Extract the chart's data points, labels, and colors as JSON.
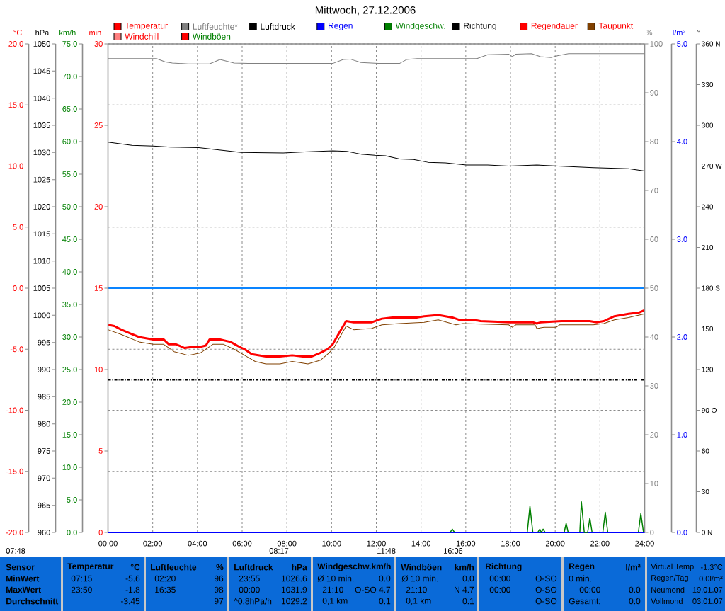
{
  "chart_data": [
    {
      "type": "line",
      "title": "Mittwoch, 27.12.2006",
      "ylabel": "°C",
      "y2label": "hPa",
      "y3label": "km/h",
      "xlim": [
        0,
        24
      ],
      "xticks": [
        {
          "value": 0,
          "label": "00:00"
        },
        {
          "value": 2,
          "label": "02:00"
        },
        {
          "value": 4,
          "label": "04:00"
        },
        {
          "value": 6,
          "label": "06:00"
        },
        {
          "value": 8,
          "label": "08:00"
        },
        {
          "value": 10,
          "label": "10:00"
        },
        {
          "value": 12,
          "label": "12:00"
        },
        {
          "value": 14,
          "label": "14:00"
        },
        {
          "value": 16,
          "label": "16:00"
        },
        {
          "value": 18,
          "label": "18:00"
        },
        {
          "value": 20,
          "label": "20:00"
        },
        {
          "value": 22,
          "label": "22:00"
        },
        {
          "value": 24,
          "label": "24:00"
        }
      ],
      "ylim": [
        -20,
        20
      ],
      "yticks": [
        {
          "value": -20,
          "label": "-20.0"
        },
        {
          "value": -15,
          "label": "-15.0"
        },
        {
          "value": -10,
          "label": "-10.0"
        },
        {
          "value": -5,
          "label": "-5.0"
        },
        {
          "value": 0,
          "label": "0.0"
        },
        {
          "value": 5,
          "label": "5.0"
        },
        {
          "value": 10,
          "label": "10.0"
        },
        {
          "value": 15,
          "label": "15.0"
        },
        {
          "value": 20,
          "label": "20.0"
        }
      ],
      "y2lim": [
        960,
        1050
      ],
      "y2ticks": [
        960,
        965,
        970,
        975,
        980,
        985,
        990,
        995,
        1000,
        1005,
        1010,
        1015,
        1020,
        1025,
        1030,
        1035,
        1040,
        1045,
        1050
      ],
      "y3lim": [
        0,
        75
      ],
      "y3ticks": [
        {
          "value": 0,
          "label": "0.0"
        },
        {
          "value": 5,
          "label": "5.0"
        },
        {
          "value": 10,
          "label": "10.0"
        },
        {
          "value": 15,
          "label": "15.0"
        },
        {
          "value": 20,
          "label": "20.0"
        },
        {
          "value": 25,
          "label": "25.0"
        },
        {
          "value": 30,
          "label": "30.0"
        },
        {
          "value": 35,
          "label": "35.0"
        },
        {
          "value": 40,
          "label": "40.0"
        },
        {
          "value": 45,
          "label": "45.0"
        },
        {
          "value": 50,
          "label": "50.0"
        },
        {
          "value": 55,
          "label": "55.0"
        },
        {
          "value": 60,
          "label": "60.0"
        },
        {
          "value": 65,
          "label": "65.0"
        },
        {
          "value": 70,
          "label": "70.0"
        },
        {
          "value": 75,
          "label": "75.0"
        }
      ],
      "grid": true,
      "legend": "top",
      "series": [
        {
          "name": "Temperatur",
          "color": "#ff0000",
          "x": [
            0,
            0.28,
            0.6,
            0.99,
            1.39,
            2.02,
            2.49,
            2.72,
            3.04,
            3.43,
            3.83,
            4.14,
            4.38,
            4.54,
            5.01,
            5.48,
            5.87,
            6.11,
            6.43,
            7.06,
            7.69,
            8.24,
            8.71,
            9.1,
            9.5,
            9.81,
            10.05,
            10.36,
            10.65,
            10.99,
            11.78,
            12.25,
            12.72,
            13.83,
            14.14,
            14.77,
            15.4,
            15.72,
            16.35,
            16.66,
            18.0,
            19.02,
            19.18,
            19.34,
            20.28,
            20.6,
            21.54,
            21.86,
            22.17,
            22.65,
            23.28,
            23.75,
            24
          ],
          "values": [
            -3.0,
            -3.1,
            -3.4,
            -3.7,
            -4.0,
            -4.2,
            -4.2,
            -4.6,
            -4.6,
            -4.9,
            -4.8,
            -4.8,
            -4.7,
            -4.2,
            -4.2,
            -4.4,
            -4.8,
            -5.0,
            -5.4,
            -5.6,
            -5.6,
            -5.5,
            -5.6,
            -5.6,
            -5.3,
            -5.0,
            -4.6,
            -3.6,
            -2.7,
            -2.8,
            -2.8,
            -2.5,
            -2.4,
            -2.4,
            -2.3,
            -2.2,
            -2.4,
            -2.6,
            -2.6,
            -2.7,
            -2.8,
            -2.8,
            -2.9,
            -2.8,
            -2.7,
            -2.7,
            -2.7,
            -2.8,
            -2.7,
            -2.3,
            -2.1,
            -2.0,
            -1.8
          ]
        },
        {
          "name": "Luftdruck",
          "color": "#000000",
          "axis": "y2",
          "x": [
            0,
            1.07,
            2.02,
            2.8,
            4.06,
            4.69,
            5.95,
            7.84,
            8.79,
            10.05,
            10.68,
            11.31,
            11.94,
            12.41,
            13.04,
            13.67,
            14.3,
            15.09,
            16.03,
            16.98,
            17.92,
            19.18,
            20.13,
            21.7,
            23.28,
            24
          ],
          "values": [
            1031.9,
            1031.3,
            1031.2,
            1031.0,
            1030.9,
            1030.6,
            1030.0,
            1029.9,
            1030.1,
            1030.3,
            1030.2,
            1029.7,
            1029.5,
            1029.4,
            1028.8,
            1028.7,
            1028.2,
            1028.1,
            1027.7,
            1027.7,
            1027.5,
            1027.7,
            1027.5,
            1027.2,
            1027.0,
            1026.6
          ]
        },
        {
          "name": "Windgeschw.",
          "color": "#008000",
          "axis": "y3",
          "x": [
            15.3,
            15.4,
            15.5,
            15.55,
            18.75,
            18.87,
            19.0,
            19.1,
            19.22,
            19.31,
            19.38,
            19.46,
            19.55,
            19.6,
            20.4,
            20.49,
            20.58,
            20.65,
            21.1,
            21.17,
            21.3,
            21.45,
            21.55,
            21.65,
            21.7,
            22.13,
            22.24,
            22.35,
            22.4,
            23.72,
            23.83,
            23.95
          ],
          "values": [
            0,
            0.5,
            0,
            null,
            0,
            4.0,
            0,
            null,
            0,
            0.5,
            0,
            0.5,
            0,
            null,
            0,
            1.4,
            0,
            null,
            0,
            4.7,
            0,
            0,
            2.2,
            0,
            null,
            0,
            3.1,
            0,
            null,
            0,
            2.9,
            0
          ]
        },
        {
          "name": "Taupunkt",
          "color": "#804000",
          "x": [
            0,
            0.6,
            1.39,
            2.02,
            2.49,
            2.96,
            3.59,
            4.14,
            4.69,
            5.17,
            5.64,
            6.11,
            6.58,
            7.06,
            7.69,
            8.24,
            8.94,
            9.5,
            9.89,
            10.13,
            10.65,
            10.99,
            11.78,
            12.25,
            13.04,
            14.14,
            14.77,
            15.56,
            15.87,
            17.92,
            18.08,
            18.24,
            19.1,
            19.18,
            19.5,
            20.05,
            20.2,
            21.7,
            22.17,
            22.65,
            23.28,
            24
          ],
          "values": [
            -3.4,
            -3.8,
            -4.4,
            -4.6,
            -4.6,
            -5.2,
            -5.5,
            -5.3,
            -4.6,
            -4.6,
            -5.0,
            -5.5,
            -6.0,
            -6.2,
            -6.2,
            -6.0,
            -6.2,
            -5.9,
            -5.3,
            -4.8,
            -3.1,
            -3.4,
            -3.3,
            -3.0,
            -2.9,
            -2.8,
            -2.6,
            -3.0,
            -2.9,
            -3.0,
            -3.2,
            -3.0,
            -3.0,
            -3.3,
            -3.2,
            -3.2,
            -3.0,
            -3.0,
            -2.9,
            -2.6,
            -2.4,
            -2.1
          ]
        },
        {
          "name": "Windchill",
          "color": "#ff8080"
        },
        {
          "name": "Windböen",
          "color": "#ff0000",
          "axis": "y3"
        }
      ],
      "ref_lines": [
        {
          "axis": "y",
          "value": 0,
          "color": "#0a84ff"
        }
      ],
      "annotations": [
        "07:48",
        "08:17",
        "11:48",
        "16:06",
        "Sensor",
        "MinWert",
        "MaxWert",
        "Durchschnitt",
        "Temperatur",
        "°C",
        "07:15",
        "-5.6",
        "23:50",
        "-1.8",
        "-3.45",
        "Luftfeuchte",
        "%",
        "02:20",
        "96",
        "16:35",
        "98",
        "97",
        "Luftdruck",
        "hPa",
        "23:55",
        "1026.6",
        "00:00",
        "1031.9",
        "^0.8hPa/h",
        "1029.2",
        "Windgeschw.km/h",
        "Ø 10 min.",
        "0.0",
        "21:10",
        "O-SO 4.7",
        "0,1 km",
        "0.1",
        "Windböen",
        "km/h",
        "Ø 10 min.",
        "0.0",
        "21:10",
        "N 4.7",
        "0,1 km",
        "0.1",
        "Richtung",
        "00:00",
        "O-SO",
        "00:00",
        "O-SO",
        "O-SO",
        "Regen",
        "l/m²",
        "0 min.",
        "00:00",
        "0.0",
        "Gesamt:",
        "0.0",
        "Virtual Temp",
        "-1.3°C",
        "Regen/Tag",
        "0.0l/m²",
        "Neumond",
        "19.01.07",
        "Vollmond",
        "03.01.07"
      ]
    },
    {
      "type": "line",
      "ylabel": "min",
      "y2label": "%",
      "y3label": "l/m²",
      "xlim": [
        0,
        24
      ],
      "ylim": [
        0,
        30
      ],
      "yticks": [
        0,
        5,
        10,
        15,
        20,
        25,
        30
      ],
      "y2lim": [
        0,
        100
      ],
      "y2ticks": [
        0,
        10,
        20,
        30,
        40,
        50,
        60,
        70,
        80,
        90,
        100
      ],
      "y3lim": [
        0,
        5
      ],
      "y3ticks": [
        {
          "value": 0,
          "label": "0.0"
        },
        {
          "value": 1,
          "label": "1.0"
        },
        {
          "value": 2,
          "label": "2.0"
        },
        {
          "value": 3,
          "label": "3.0"
        },
        {
          "value": 4,
          "label": "4.0"
        },
        {
          "value": 5,
          "label": "5.0"
        }
      ],
      "tick_labels": "y",
      "legend": "top",
      "series": [
        {
          "name": "Luftfeuchte*",
          "color": "#808080",
          "axis": "y2",
          "x": [
            0,
            2.17,
            2.57,
            2.88,
            3.59,
            4.54,
            5.01,
            5.64,
            6.27,
            10.05,
            10.52,
            10.83,
            11.31,
            12.09,
            13.04,
            13.35,
            13.83,
            16.5,
            16.98,
            17.92,
            18.08,
            18.24,
            18.94,
            19.34,
            19.81,
            20.13,
            20.6,
            24
          ],
          "values": [
            97.0,
            97.0,
            96.3,
            96.1,
            95.9,
            95.9,
            96.8,
            96.1,
            96.0,
            96.0,
            96.8,
            96.9,
            96.2,
            96.0,
            96.0,
            96.8,
            97.0,
            97.0,
            97.8,
            97.9,
            97.4,
            97.9,
            98.0,
            97.4,
            97.2,
            97.6,
            98.0,
            98.0
          ]
        },
        {
          "name": "Regen",
          "color": "#0000ff",
          "axis": "y3",
          "x": [
            0,
            24
          ],
          "values": [
            0,
            0
          ]
        },
        {
          "name": "Regendauer",
          "color": "#ff0000"
        }
      ]
    },
    {
      "type": "line",
      "ylabel": "°",
      "xlim": [
        0,
        24
      ],
      "ylim": [
        0,
        360
      ],
      "yticks": [
        {
          "value": 0,
          "label": "0 N"
        },
        30,
        60,
        {
          "value": 90,
          "label": "90 O"
        },
        120,
        150,
        {
          "value": 180,
          "label": "180 S"
        },
        210,
        240,
        {
          "value": 270,
          "label": "270 W"
        },
        300,
        330,
        {
          "value": 360,
          "label": "360 N"
        }
      ],
      "tick_labels": "y",
      "legend": "top",
      "series": [
        {
          "name": "Richtung",
          "color": "#000000",
          "line_style": "dashed",
          "x": [
            0,
            24
          ],
          "values": [
            112.5,
            112.5
          ]
        }
      ]
    }
  ]
}
